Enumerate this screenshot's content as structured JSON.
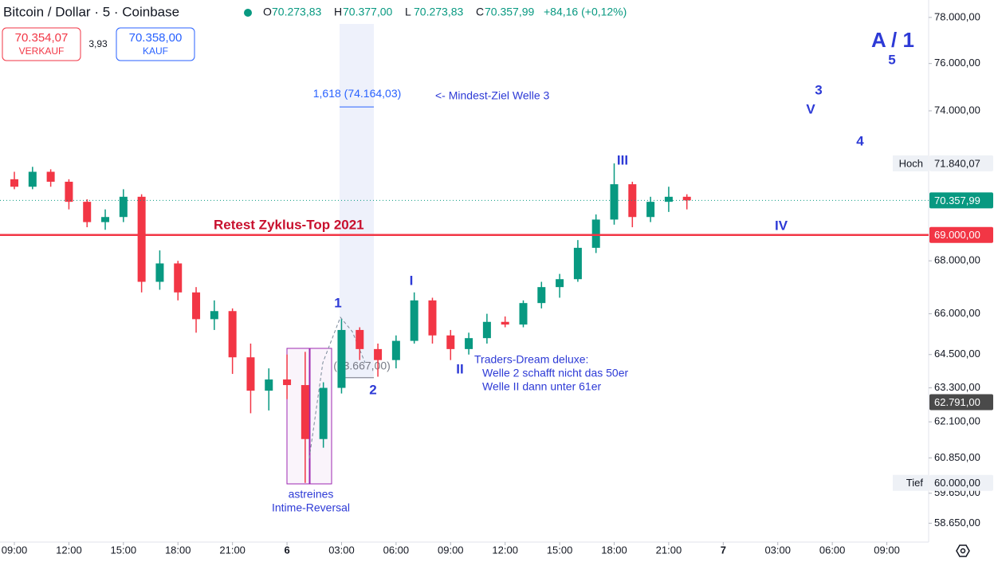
{
  "chart_data": {
    "type": "candlestick",
    "title": "Bitcoin / Dollar · 5 · Coinbase",
    "ohlc": [
      [
        "O",
        "70.273,83"
      ],
      [
        "H",
        "70.377,00"
      ],
      [
        "L",
        "70.273,83"
      ],
      [
        "C",
        "70.357,99"
      ]
    ],
    "change": "+84,16 (+0,12%)",
    "sell": {
      "price": "70.354,07",
      "label": "VERKAUF"
    },
    "spread": "3,93",
    "buy": {
      "price": "70.358,00",
      "label": "KAUF"
    },
    "up_color": "#089981",
    "down_color": "#f23645",
    "log_scale": true,
    "grid": false,
    "x": [
      0,
      1,
      2,
      3,
      4,
      5,
      6,
      7,
      8,
      9,
      10,
      11,
      12,
      13,
      14,
      15,
      16,
      17,
      18,
      19,
      20,
      21,
      22,
      23,
      24,
      25,
      26,
      27,
      28,
      29,
      30,
      31,
      32,
      33,
      34,
      35,
      36,
      37
    ],
    "open": [
      71200,
      70900,
      71500,
      71100,
      70300,
      69500,
      69700,
      70500,
      67200,
      67900,
      66800,
      65800,
      66100,
      64400,
      63200,
      63600,
      63400,
      61500,
      63300,
      65400,
      64700,
      64300,
      65000,
      66500,
      65200,
      64700,
      65100,
      65700,
      65600,
      66400,
      67000,
      67300,
      68500,
      69600,
      71000,
      69700,
      70300,
      70500
    ],
    "high": [
      71500,
      71700,
      71600,
      71200,
      70400,
      70000,
      70800,
      70600,
      68400,
      68000,
      67000,
      66500,
      66200,
      64900,
      64000,
      64500,
      64600,
      63500,
      65800,
      65500,
      64900,
      65200,
      66800,
      66600,
      65400,
      65300,
      66000,
      65900,
      66500,
      67200,
      67500,
      68800,
      69800,
      71840,
      71100,
      70500,
      70900,
      70600
    ],
    "low": [
      70800,
      70800,
      70900,
      70000,
      69300,
      69200,
      69500,
      66800,
      66900,
      66500,
      65300,
      65400,
      63800,
      62400,
      62500,
      62900,
      60000,
      61200,
      63100,
      64300,
      63700,
      64000,
      64900,
      64900,
      64300,
      64500,
      64900,
      65500,
      65500,
      66200,
      66600,
      67200,
      68300,
      69400,
      69300,
      69500,
      69900,
      70000
    ],
    "close": [
      70900,
      71500,
      71100,
      70300,
      69500,
      69700,
      70500,
      67200,
      67900,
      66800,
      65800,
      66100,
      64400,
      63200,
      63600,
      63400,
      61500,
      63300,
      65400,
      64700,
      64300,
      65000,
      66500,
      65200,
      64700,
      65100,
      65700,
      65600,
      66400,
      67000,
      67300,
      68500,
      69600,
      71000,
      69700,
      70300,
      70500,
      70358
    ],
    "xlim": [
      -0.79,
      50.3
    ],
    "xticks": [
      {
        "value": 0,
        "label": "09:00"
      },
      {
        "value": 3,
        "label": "12:00"
      },
      {
        "value": 6,
        "label": "15:00"
      },
      {
        "value": 9,
        "label": "18:00"
      },
      {
        "value": 12,
        "label": "21:00"
      },
      {
        "value": 15,
        "label": "6"
      },
      {
        "value": 18,
        "label": "03:00"
      },
      {
        "value": 21,
        "label": "06:00"
      },
      {
        "value": 24,
        "label": "09:00"
      },
      {
        "value": 27,
        "label": "12:00"
      },
      {
        "value": 30,
        "label": "15:00"
      },
      {
        "value": 33,
        "label": "18:00"
      },
      {
        "value": 36,
        "label": "21:00"
      },
      {
        "value": 39,
        "label": "7"
      },
      {
        "value": 42,
        "label": "03:00"
      },
      {
        "value": 45,
        "label": "06:00"
      },
      {
        "value": 48,
        "label": "09:00"
      }
    ],
    "ylim": [
      58030,
      78770
    ],
    "yticks": [
      {
        "value": 78000,
        "label": "78.000,00"
      },
      {
        "value": 76000,
        "label": "76.000,00"
      },
      {
        "value": 74000,
        "label": "74.000,00"
      },
      {
        "value": 68000,
        "label": "68.000,00"
      },
      {
        "value": 66000,
        "label": "66.000,00"
      },
      {
        "value": 64500,
        "label": "64.500,00"
      },
      {
        "value": 63300,
        "label": "63.300,00"
      },
      {
        "value": 62100,
        "label": "62.100,00"
      },
      {
        "value": 60850,
        "label": "60.850,00"
      },
      {
        "value": 59650,
        "label": "59.650,00"
      },
      {
        "value": 58650,
        "label": "58.650,00"
      }
    ],
    "price_lines": [
      {
        "value": 69000,
        "label": "69.000,00",
        "color": "#f23645",
        "full": true
      },
      {
        "value": 70357.99,
        "label": "70.357,99",
        "color": "#089981",
        "dotted": true
      }
    ],
    "price_tags": [
      {
        "name": "Hoch",
        "value": 71840.07,
        "label": "71.840,07"
      },
      {
        "value": 62791,
        "label": "62.791,00",
        "color": "#4a4a4a"
      },
      {
        "name": "Tief",
        "value": 60000,
        "label": "60.000,00"
      }
    ],
    "fib_levels": [
      {
        "value": 74164.03,
        "label": "1,618 (74.164,03)"
      },
      {
        "value": 63667,
        "label": "(63.667,00)"
      }
    ],
    "annotations": {
      "retest": "Retest Zyklus-Top 2021",
      "target": "<- Mindest-Ziel Welle 3",
      "dream": [
        "Traders-Dream deluxe:",
        "Welle 2 schafft nicht das 50er",
        "Welle II dann unter 61er"
      ],
      "reversal": [
        "astreines",
        "Intime-Reversal"
      ],
      "waves": [
        "1",
        "2",
        "I",
        "II",
        "III",
        "IV",
        "V",
        "3",
        "4",
        "5",
        "A / 1"
      ]
    }
  }
}
